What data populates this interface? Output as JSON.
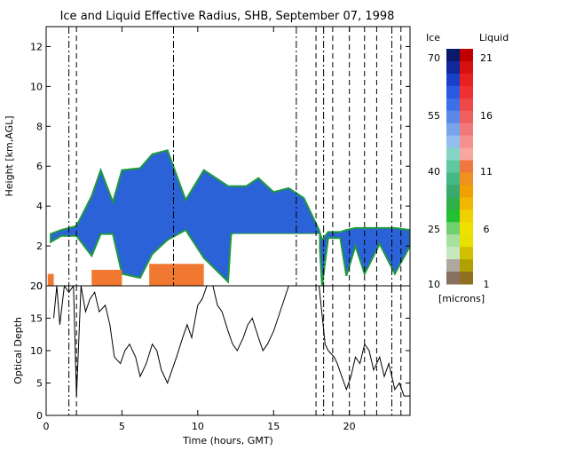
{
  "chart_data": [
    {
      "type": "heatmap",
      "title": "Ice and Liquid Effective Radius, SHB, September 07, 1998",
      "xlabel": "",
      "ylabel": "Height [km,AGL]",
      "xlim": [
        0,
        24
      ],
      "ylim": [
        0,
        13
      ],
      "yticks": [
        "0",
        "2",
        "4",
        "6",
        "8",
        "10",
        "12"
      ],
      "colorbar": {
        "ice_label": "Ice",
        "liquid_label": "Liquid",
        "units": "[microns]",
        "ice_ticks": [
          "70",
          "55",
          "40",
          "25",
          "10"
        ],
        "liquid_ticks": [
          "21",
          "16",
          "11",
          "6",
          "1"
        ],
        "ice_colors": [
          "#0a1a6b",
          "#10289a",
          "#1840c8",
          "#2a58e0",
          "#3d6fe8",
          "#5a88ea",
          "#78a4ee",
          "#92bff0",
          "#86d4c8",
          "#5fc8a0",
          "#46b884",
          "#3aaa70",
          "#2fb04a",
          "#20c030",
          "#6fd070",
          "#a8e0a0",
          "#c8e8c0",
          "#b0a8a0",
          "#8a7060"
        ],
        "liquid_colors": [
          "#c00000",
          "#d81010",
          "#e82020",
          "#f03030",
          "#f04848",
          "#f06060",
          "#f07878",
          "#f49090",
          "#f8a8a0",
          "#f07840",
          "#f09020",
          "#f0a000",
          "#f0b800",
          "#f0d000",
          "#f0e000",
          "#e8e000",
          "#d0c000",
          "#b0a000",
          "#907020"
        ]
      },
      "ice_cloud": {
        "color": "#2c62d8",
        "base_km": [
          [
            0.3,
            2.2
          ],
          [
            1.0,
            2.5
          ],
          [
            2.0,
            2.5
          ],
          [
            3.0,
            1.5
          ],
          [
            3.6,
            2.6
          ],
          [
            4.4,
            2.6
          ],
          [
            5.0,
            0.6
          ],
          [
            6.2,
            0.4
          ],
          [
            7.0,
            1.6
          ],
          [
            8.0,
            2.3
          ],
          [
            9.2,
            2.8
          ],
          [
            10.4,
            1.4
          ],
          [
            12.0,
            0.2
          ],
          [
            12.2,
            2.6
          ],
          [
            18.0,
            2.6
          ],
          [
            18.2,
            0.0
          ],
          [
            18.6,
            2.4
          ],
          [
            19.4,
            2.4
          ],
          [
            19.8,
            0.5
          ],
          [
            20.4,
            2.0
          ],
          [
            21.0,
            0.6
          ],
          [
            22.0,
            2.1
          ],
          [
            23.0,
            0.6
          ],
          [
            24.0,
            2.0
          ]
        ],
        "top_km": [
          [
            0.3,
            2.6
          ],
          [
            1.0,
            2.8
          ],
          [
            2.0,
            3.0
          ],
          [
            3.0,
            4.5
          ],
          [
            3.6,
            5.8
          ],
          [
            4.4,
            4.2
          ],
          [
            5.0,
            5.8
          ],
          [
            6.2,
            5.9
          ],
          [
            7.0,
            6.6
          ],
          [
            8.0,
            6.8
          ],
          [
            9.2,
            4.3
          ],
          [
            10.4,
            5.8
          ],
          [
            12.0,
            5.0
          ],
          [
            13.2,
            5.0
          ],
          [
            14.0,
            5.4
          ],
          [
            15.0,
            4.7
          ],
          [
            16.0,
            4.9
          ],
          [
            17.0,
            4.4
          ],
          [
            18.0,
            2.8
          ],
          [
            18.2,
            2.3
          ],
          [
            18.6,
            2.7
          ],
          [
            19.4,
            2.7
          ],
          [
            19.8,
            2.8
          ],
          [
            20.4,
            2.9
          ],
          [
            21.0,
            2.9
          ],
          [
            22.0,
            2.9
          ],
          [
            23.0,
            2.9
          ],
          [
            24.0,
            2.8
          ]
        ]
      },
      "liquid_cloud": {
        "color": "#f07830",
        "regions": [
          {
            "x": [
              0.1,
              0.5
            ],
            "base_km": 0.0,
            "top_km": 0.6
          },
          {
            "x": [
              3.0,
              5.0
            ],
            "base_km": 0.0,
            "top_km": 0.8
          },
          {
            "x": [
              6.8,
              10.4
            ],
            "base_km": 0.0,
            "top_km": 1.1
          }
        ]
      },
      "missing": [
        {
          "x": [
            12.3,
            18.0
          ],
          "base_km": 0.0,
          "top_km": 2.6
        }
      ],
      "cloud_edge_color": "#1e9a40",
      "vertical_lines": {
        "dashdot": [
          1.5,
          8.4,
          16.5,
          18.3,
          22.8
        ],
        "dashed": [
          2.0,
          17.8,
          18.9,
          20.0,
          21.0,
          21.8,
          23.4
        ]
      }
    },
    {
      "type": "line",
      "title": "",
      "xlabel": "Time (hours, GMT)",
      "ylabel": "Optical Depth",
      "xlim": [
        0,
        24
      ],
      "ylim": [
        0,
        20
      ],
      "xticks": [
        "0",
        "5",
        "10",
        "15",
        "20"
      ],
      "yticks": [
        "0",
        "5",
        "10",
        "15",
        "20"
      ],
      "series": [
        {
          "x": [
            0.5,
            0.7,
            0.9,
            1.2,
            1.5,
            1.8,
            2.0,
            2.3,
            2.6,
            2.9,
            3.2,
            3.5,
            3.9,
            4.2,
            4.5,
            4.9,
            5.2,
            5.5,
            5.9,
            6.2,
            6.6,
            7.0,
            7.3,
            7.6,
            8.0,
            8.3,
            8.6,
            9.0,
            9.3,
            9.6,
            10.0,
            10.3,
            10.6,
            11.0,
            11.3,
            11.6,
            12.0,
            12.3,
            12.6,
            13.0,
            13.3,
            13.6,
            14.0,
            14.3,
            14.6,
            15.0,
            16.0,
            17.0,
            18.0,
            18.4,
            18.6,
            19.0,
            19.2,
            19.5,
            19.8,
            20.1,
            20.4,
            20.7,
            21.0,
            21.3,
            21.6,
            22.0,
            22.3,
            22.6,
            23.0,
            23.3,
            23.6,
            24.0
          ],
          "y": [
            15,
            20,
            14,
            20,
            19,
            20,
            3,
            20,
            16,
            18,
            19,
            16,
            17,
            14,
            9,
            8,
            10,
            11,
            9,
            6,
            8,
            11,
            10,
            7,
            5,
            7,
            9,
            12,
            14,
            12,
            17,
            18,
            20,
            20,
            17,
            16,
            13,
            11,
            10,
            12,
            14,
            15,
            12,
            10,
            11,
            13,
            20,
            20,
            20,
            11,
            10,
            9,
            8,
            6,
            4,
            6,
            9,
            8,
            11,
            10,
            7,
            9,
            6,
            8,
            4,
            5,
            3,
            3
          ]
        }
      ],
      "vertical_lines": {
        "dashdot": [
          1.5,
          18.3,
          22.8
        ],
        "dashed": [
          2.0,
          17.8,
          18.9,
          20.0,
          21.0,
          21.8,
          23.4
        ]
      }
    }
  ]
}
